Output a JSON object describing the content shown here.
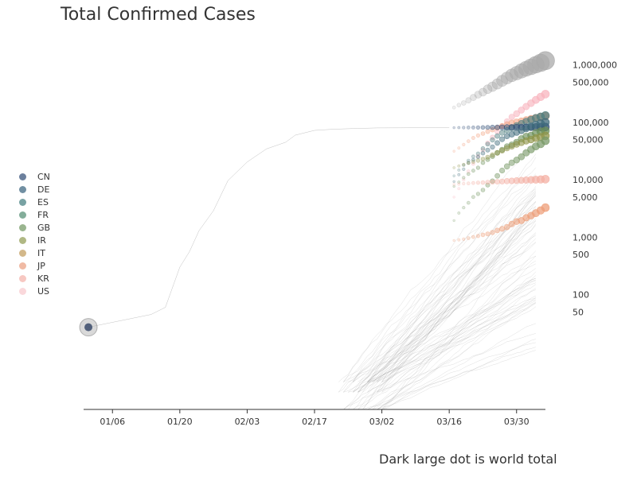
{
  "chart_data": {
    "type": "scatter",
    "title": "Total Confirmed Cases",
    "footnote": "Dark large dot is world total",
    "x_axis": {
      "range": [
        "2019-12-31",
        "2020-04-05"
      ],
      "ticks": [
        "01/06",
        "01/20",
        "02/03",
        "02/17",
        "03/02",
        "03/16",
        "03/30"
      ]
    },
    "y_axis": {
      "scale": "log",
      "range": [
        1,
        2000000
      ],
      "tick_labels": [
        "1,000,000",
        "500,000",
        "100,000",
        "50,000",
        "10,000",
        "5,000",
        "1,000",
        "500",
        "100",
        "50"
      ]
    },
    "legend": {
      "placement": "left",
      "items": [
        {
          "label": "CN",
          "color": "#2d4a73"
        },
        {
          "label": "DE",
          "color": "#35607a"
        },
        {
          "label": "ES",
          "color": "#3f7a7c"
        },
        {
          "label": "FR",
          "color": "#4e8a6f"
        },
        {
          "label": "GB",
          "color": "#6f9660"
        },
        {
          "label": "IR",
          "color": "#8e9a50"
        },
        {
          "label": "IT",
          "color": "#c09a58"
        },
        {
          "label": "JP",
          "color": "#ea9c7e"
        },
        {
          "label": "KR",
          "color": "#f4b0a8"
        },
        {
          "label": "US",
          "color": "#f8c8cc"
        }
      ]
    },
    "series": [
      {
        "name": "World",
        "color": "#aaaaaa",
        "start": "2020-03-17",
        "values": [
          182000,
          200000,
          218000,
          242000,
          272000,
          305000,
          336000,
          378000,
          418000,
          467000,
          529000,
          593000,
          660000,
          720000,
          785000,
          860000,
          930000,
          1010000,
          1090000,
          1190000
        ]
      },
      {
        "name": "US",
        "color": "#f8b4be",
        "start": "2020-03-17",
        "values": [
          5000,
          7000,
          10000,
          14000,
          19000,
          26000,
          33000,
          44000,
          55000,
          69000,
          86000,
          104000,
          124000,
          142000,
          164000,
          189000,
          216000,
          246000,
          278000,
          311000
        ]
      },
      {
        "name": "IT",
        "color": "#f2a07e",
        "start": "2020-03-17",
        "values": [
          31500,
          35700,
          41000,
          47000,
          53600,
          59100,
          63900,
          69200,
          74400,
          80600,
          86500,
          92500,
          97700,
          101700,
          105800,
          110600,
          115200,
          119800,
          124600,
          128900
        ]
      },
      {
        "name": "ES",
        "color": "#4f7f80",
        "start": "2020-03-17",
        "values": [
          11700,
          14800,
          18000,
          21600,
          25400,
          28600,
          35100,
          42000,
          49500,
          57800,
          65700,
          73200,
          80100,
          87900,
          95900,
          104100,
          112100,
          119200,
          126200,
          131600
        ]
      },
      {
        "name": "CN",
        "color": "#2d4a73",
        "start": "2020-03-17",
        "values": [
          81000,
          81100,
          81200,
          81300,
          81400,
          81500,
          81600,
          81700,
          81800,
          81900,
          82000,
          82100,
          82200,
          82300,
          82400,
          82500,
          82600,
          82700,
          82800,
          82900
        ]
      },
      {
        "name": "DE",
        "color": "#3d6a7a",
        "start": "2020-03-17",
        "values": [
          9300,
          12300,
          15300,
          19800,
          22200,
          24900,
          29100,
          32900,
          37300,
          43900,
          50900,
          57700,
          62100,
          66900,
          71800,
          77800,
          84800,
          91100,
          96100,
          100100
        ]
      },
      {
        "name": "FR",
        "color": "#6b8f58",
        "start": "2020-03-17",
        "values": [
          7700,
          9100,
          10900,
          12600,
          14400,
          16200,
          19900,
          22600,
          25600,
          29500,
          33400,
          38100,
          40700,
          45200,
          52100,
          56900,
          59100,
          65200,
          69500,
          71400
        ]
      },
      {
        "name": "IR",
        "color": "#8f9448",
        "start": "2020-03-17",
        "values": [
          16200,
          17400,
          18400,
          19600,
          20600,
          21600,
          23000,
          24800,
          27000,
          29400,
          32300,
          35400,
          38300,
          41500,
          44600,
          47600,
          50500,
          53200,
          55700,
          58200
        ]
      },
      {
        "name": "GB",
        "color": "#7a9a68",
        "start": "2020-03-17",
        "values": [
          1950,
          2630,
          3270,
          3980,
          5020,
          5680,
          6650,
          8080,
          9530,
          11700,
          14500,
          17100,
          19800,
          22100,
          25200,
          29500,
          33700,
          38200,
          41900,
          47800
        ]
      },
      {
        "name": "KR",
        "color": "#f4b0a4",
        "start": "2020-03-17",
        "values": [
          8320,
          8410,
          8570,
          8650,
          8800,
          8900,
          8960,
          9040,
          9140,
          9240,
          9330,
          9480,
          9580,
          9660,
          9790,
          9890,
          9980,
          10060,
          10160,
          10240
        ]
      },
      {
        "name": "JP",
        "color": "#ee9e78",
        "start": "2020-03-17",
        "values": [
          880,
          900,
          925,
          960,
          1010,
          1050,
          1100,
          1140,
          1210,
          1310,
          1400,
          1500,
          1700,
          1870,
          1950,
          2180,
          2380,
          2620,
          2930,
          3270
        ]
      }
    ],
    "world_total_early": {
      "date": "2020-01-01",
      "value": 27
    },
    "grid": false
  }
}
